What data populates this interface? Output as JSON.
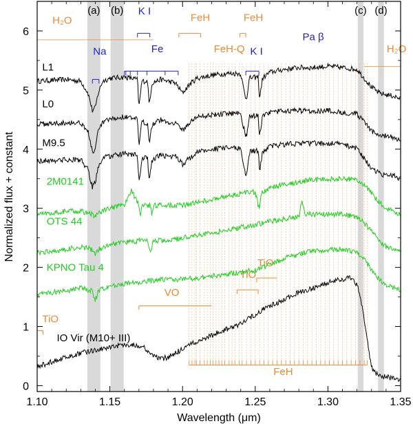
{
  "chart_data": {
    "type": "line",
    "xlabel": "Wavelength (μm)",
    "ylabel": "Normalized flux + constant",
    "xlim": [
      1.1,
      1.35
    ],
    "ylim": [
      -0.1,
      6.5
    ],
    "x_ticks": [
      {
        "value": 1.1,
        "label": "1.10"
      },
      {
        "value": 1.15,
        "label": "1.15"
      },
      {
        "value": 1.2,
        "label": "1.20"
      },
      {
        "value": 1.25,
        "label": "1.25"
      },
      {
        "value": 1.3,
        "label": "1.30"
      },
      {
        "value": 1.35,
        "label": "1.35"
      }
    ],
    "y_ticks": [
      {
        "value": 0,
        "label": "0"
      },
      {
        "value": 1,
        "label": "1"
      },
      {
        "value": 2,
        "label": "2"
      },
      {
        "value": 3,
        "label": "3"
      },
      {
        "value": 4,
        "label": "4"
      },
      {
        "value": 5,
        "label": "5"
      },
      {
        "value": 6,
        "label": "6"
      }
    ],
    "shaded_bands": [
      {
        "label": "(a)",
        "x0": 1.1345,
        "x1": 1.1435
      },
      {
        "label": "(b)",
        "x0": 1.1505,
        "x1": 1.1595
      },
      {
        "label": "(c)",
        "x0": 1.3205,
        "x1": 1.3245
      },
      {
        "label": "(d)",
        "x0": 1.3345,
        "x1": 1.3385
      }
    ],
    "series": [
      {
        "name": "L1",
        "color": "#000000",
        "label_x": 1.1035,
        "label_y": 5.33,
        "x": [
          1.1,
          1.12,
          1.13,
          1.135,
          1.138,
          1.14,
          1.142,
          1.145,
          1.15,
          1.16,
          1.169,
          1.17,
          1.172,
          1.176,
          1.177,
          1.179,
          1.185,
          1.19,
          1.195,
          1.2,
          1.205,
          1.21,
          1.22,
          1.23,
          1.24,
          1.243,
          1.244,
          1.246,
          1.252,
          1.253,
          1.255,
          1.26,
          1.27,
          1.28,
          1.29,
          1.3,
          1.31,
          1.32,
          1.325,
          1.33,
          1.335,
          1.34,
          1.345,
          1.35
        ],
        "y": [
          5.15,
          5.18,
          5.15,
          4.95,
          4.65,
          4.7,
          4.95,
          5.15,
          5.2,
          5.22,
          5.18,
          4.7,
          5.15,
          5.15,
          4.75,
          5.12,
          5.18,
          5.15,
          5.12,
          4.95,
          5.1,
          5.2,
          5.25,
          5.28,
          5.28,
          4.9,
          4.85,
          5.2,
          5.22,
          4.85,
          5.2,
          5.3,
          5.35,
          5.38,
          5.38,
          5.4,
          5.38,
          5.35,
          5.2,
          5.05,
          4.95,
          4.92,
          4.9,
          4.85
        ]
      },
      {
        "name": "L0",
        "color": "#000000",
        "label_x": 1.1035,
        "label_y": 4.71,
        "x": [
          1.1,
          1.12,
          1.13,
          1.135,
          1.138,
          1.14,
          1.142,
          1.145,
          1.15,
          1.16,
          1.169,
          1.17,
          1.172,
          1.176,
          1.177,
          1.179,
          1.185,
          1.19,
          1.195,
          1.2,
          1.205,
          1.21,
          1.22,
          1.23,
          1.24,
          1.243,
          1.244,
          1.246,
          1.252,
          1.253,
          1.255,
          1.26,
          1.27,
          1.28,
          1.29,
          1.3,
          1.31,
          1.32,
          1.325,
          1.33,
          1.335,
          1.34,
          1.345,
          1.35
        ],
        "y": [
          4.42,
          4.45,
          4.45,
          4.3,
          3.95,
          4.0,
          4.3,
          4.45,
          4.5,
          4.55,
          4.5,
          4.05,
          4.45,
          4.45,
          4.1,
          4.42,
          4.5,
          4.45,
          4.45,
          4.32,
          4.45,
          4.55,
          4.58,
          4.6,
          4.62,
          4.25,
          4.2,
          4.55,
          4.58,
          4.2,
          4.55,
          4.62,
          4.65,
          4.65,
          4.65,
          4.65,
          4.62,
          4.6,
          4.45,
          4.3,
          4.25,
          4.22,
          4.2,
          4.15
        ]
      },
      {
        "name": "M9.5",
        "color": "#000000",
        "label_x": 1.1035,
        "label_y": 4.05,
        "x": [
          1.1,
          1.12,
          1.13,
          1.135,
          1.138,
          1.14,
          1.142,
          1.145,
          1.15,
          1.16,
          1.169,
          1.17,
          1.172,
          1.176,
          1.177,
          1.179,
          1.185,
          1.19,
          1.195,
          1.2,
          1.205,
          1.21,
          1.22,
          1.23,
          1.24,
          1.243,
          1.244,
          1.246,
          1.252,
          1.253,
          1.255,
          1.26,
          1.27,
          1.28,
          1.29,
          1.3,
          1.31,
          1.32,
          1.325,
          1.33,
          1.335,
          1.34,
          1.345,
          1.35
        ],
        "y": [
          3.8,
          3.82,
          3.82,
          3.65,
          3.35,
          3.45,
          3.7,
          3.85,
          3.88,
          3.92,
          3.9,
          3.4,
          3.85,
          3.85,
          3.45,
          3.82,
          3.9,
          3.88,
          3.88,
          3.75,
          3.85,
          3.95,
          4.0,
          4.02,
          4.02,
          3.6,
          3.55,
          3.95,
          3.98,
          3.6,
          3.95,
          4.05,
          4.08,
          4.1,
          4.1,
          4.1,
          4.08,
          4.02,
          3.85,
          3.65,
          3.6,
          3.55,
          3.55,
          3.5
        ]
      },
      {
        "name": "2M0141",
        "color": "#22cc22",
        "label_x": 1.1065,
        "label_y": 3.4,
        "x": [
          1.1,
          1.12,
          1.13,
          1.138,
          1.14,
          1.142,
          1.15,
          1.16,
          1.165,
          1.17,
          1.171,
          1.172,
          1.178,
          1.179,
          1.18,
          1.19,
          1.2,
          1.21,
          1.22,
          1.23,
          1.24,
          1.25,
          1.252,
          1.253,
          1.254,
          1.26,
          1.27,
          1.28,
          1.29,
          1.3,
          1.31,
          1.32,
          1.325,
          1.33,
          1.335,
          1.34,
          1.345,
          1.35
        ],
        "y": [
          2.9,
          2.95,
          2.95,
          2.9,
          2.85,
          2.92,
          3.0,
          3.05,
          3.3,
          3.05,
          2.85,
          3.05,
          3.05,
          2.85,
          3.05,
          3.05,
          3.05,
          3.1,
          3.15,
          3.2,
          3.25,
          3.28,
          3.05,
          2.95,
          3.25,
          3.35,
          3.4,
          3.45,
          3.48,
          3.5,
          3.5,
          3.48,
          3.4,
          3.25,
          3.1,
          3.0,
          2.95,
          2.9
        ]
      },
      {
        "name": "OTS 44",
        "color": "#22cc22",
        "label_x": 1.1065,
        "label_y": 2.72,
        "x": [
          1.1,
          1.12,
          1.13,
          1.138,
          1.14,
          1.142,
          1.15,
          1.16,
          1.17,
          1.176,
          1.178,
          1.18,
          1.19,
          1.2,
          1.21,
          1.22,
          1.23,
          1.24,
          1.25,
          1.26,
          1.27,
          1.28,
          1.282,
          1.284,
          1.29,
          1.3,
          1.31,
          1.32,
          1.325,
          1.33,
          1.335,
          1.34,
          1.345,
          1.35
        ],
        "y": [
          2.25,
          2.3,
          2.35,
          2.3,
          2.2,
          2.3,
          2.4,
          2.42,
          2.45,
          2.45,
          2.25,
          2.45,
          2.45,
          2.5,
          2.55,
          2.58,
          2.62,
          2.68,
          2.72,
          2.78,
          2.82,
          2.85,
          3.15,
          2.9,
          2.9,
          2.9,
          2.9,
          2.85,
          2.75,
          2.6,
          2.45,
          2.35,
          2.3,
          2.25
        ]
      },
      {
        "name": "KPNO Tau 4",
        "color": "#22cc22",
        "label_x": 1.1065,
        "label_y": 1.94,
        "x": [
          1.1,
          1.12,
          1.13,
          1.138,
          1.14,
          1.142,
          1.15,
          1.16,
          1.17,
          1.18,
          1.19,
          1.2,
          1.21,
          1.22,
          1.23,
          1.24,
          1.25,
          1.26,
          1.27,
          1.28,
          1.29,
          1.3,
          1.31,
          1.32,
          1.325,
          1.33,
          1.335,
          1.34,
          1.345,
          1.35
        ],
        "y": [
          1.55,
          1.6,
          1.65,
          1.6,
          1.45,
          1.6,
          1.68,
          1.72,
          1.75,
          1.78,
          1.8,
          1.8,
          1.82,
          1.85,
          1.88,
          1.92,
          1.95,
          2.05,
          2.15,
          2.22,
          2.28,
          2.3,
          2.3,
          2.25,
          2.15,
          1.95,
          1.8,
          1.7,
          1.65,
          1.62
        ]
      },
      {
        "name": "IO Vir (M10+ III)",
        "color": "#000000",
        "label_x": 1.1135,
        "label_y": 0.75,
        "x": [
          1.1,
          1.11,
          1.12,
          1.13,
          1.14,
          1.15,
          1.16,
          1.17,
          1.175,
          1.18,
          1.185,
          1.19,
          1.195,
          1.2,
          1.21,
          1.22,
          1.23,
          1.24,
          1.25,
          1.26,
          1.27,
          1.28,
          1.29,
          1.3,
          1.31,
          1.315,
          1.32,
          1.322,
          1.325,
          1.328,
          1.33,
          1.332,
          1.335,
          1.34,
          1.345,
          1.35
        ],
        "y": [
          0.32,
          0.4,
          0.48,
          0.55,
          0.6,
          0.65,
          0.7,
          0.68,
          0.62,
          0.5,
          0.45,
          0.48,
          0.55,
          0.62,
          0.75,
          0.85,
          0.95,
          1.05,
          1.2,
          1.35,
          1.45,
          1.58,
          1.65,
          1.75,
          1.8,
          1.82,
          1.7,
          1.55,
          1.1,
          0.6,
          0.32,
          0.22,
          0.18,
          0.15,
          0.12,
          0.1
        ]
      }
    ],
    "features": [
      {
        "label": "H₂O",
        "color": "#ee8833",
        "label_x": 1.1105,
        "label_y": 6.12,
        "bar_y": 5.85,
        "bar_x0": 1.1,
        "bar_x1": 1.18,
        "ticks": [],
        "style": "line"
      },
      {
        "label": "Na",
        "color": "#2222cc",
        "label_x": 1.1385,
        "label_y": 5.6,
        "bar_y": 5.18,
        "bar_x0": 1.138,
        "bar_x1": 1.1425,
        "ticks": [
          1.138,
          1.1425
        ],
        "style": "bracket"
      },
      {
        "label": "K I",
        "color": "#2222cc",
        "label_x": 1.1695,
        "label_y": 6.28,
        "bar_y": 5.96,
        "bar_x0": 1.169,
        "bar_x1": 1.1775,
        "ticks": [
          1.169,
          1.1775
        ],
        "style": "bracket"
      },
      {
        "label": "Fe",
        "color": "#2222cc",
        "label_x": 1.1785,
        "label_y": 5.64,
        "bar_y": 5.32,
        "bar_x0": 1.16,
        "bar_x1": 1.197,
        "ticks": [
          1.16,
          1.161,
          1.164,
          1.169,
          1.1755,
          1.188,
          1.197
        ],
        "style": "bracket"
      },
      {
        "label": "FeH",
        "color": "#ee8833",
        "label_x": 1.2055,
        "label_y": 6.17,
        "bar_y": 5.96,
        "bar_x0": 1.1975,
        "bar_x1": 1.2125,
        "ticks": [
          1.1975,
          1.2125
        ],
        "style": "bracket-line"
      },
      {
        "label": "FeH",
        "color": "#ee8833",
        "label_x": 1.242,
        "label_y": 6.17,
        "bar_y": 5.96,
        "bar_x0": 1.2395,
        "bar_x1": 1.2435,
        "ticks": [
          1.2395,
          1.2435
        ],
        "style": "bracket"
      },
      {
        "label": "FeH-Q",
        "color": "#ee8833",
        "label_x": 1.2215,
        "label_y": 5.64,
        "bar_y": 5.4,
        "bar_x0": 1.2,
        "bar_x1": 1.24,
        "ticks": [],
        "style": "none"
      },
      {
        "label": "K I",
        "color": "#2222cc",
        "label_x": 1.2465,
        "label_y": 5.6,
        "bar_y": 5.32,
        "bar_x0": 1.2435,
        "bar_x1": 1.2525,
        "ticks": [
          1.2435,
          1.2525
        ],
        "style": "bracket"
      },
      {
        "label": "Pa β",
        "color": "#2222cc",
        "label_x": 1.2825,
        "label_y": 5.84,
        "bar_y": 5.62,
        "bar_x0": 1.2818,
        "bar_x1": 1.2822,
        "ticks": [],
        "style": "none"
      },
      {
        "label": "H₂O",
        "color": "#ee8833",
        "label_x": 1.3405,
        "label_y": 5.64,
        "bar_y": 5.4,
        "bar_x0": 1.325,
        "bar_x1": 1.35,
        "ticks": [],
        "style": "line"
      },
      {
        "label": "TiO",
        "color": "#ee8833",
        "label_x": 1.1035,
        "label_y": 1.07,
        "bar_y": 0.93,
        "bar_x0": 1.1,
        "bar_x1": 1.104,
        "ticks": [
          1.104
        ],
        "style": "bracket-line"
      },
      {
        "label": "VO",
        "color": "#ee8833",
        "label_x": 1.1875,
        "label_y": 1.52,
        "bar_y": 1.35,
        "bar_x0": 1.17,
        "bar_x1": 1.22,
        "ticks": [
          1.17
        ],
        "style": "bracket-line"
      },
      {
        "label": "TiO",
        "color": "#ee8833",
        "label_x": 1.2395,
        "label_y": 1.82,
        "bar_y": 1.62,
        "bar_x0": 1.2375,
        "bar_x1": 1.252,
        "ticks": [
          1.2375,
          1.252
        ],
        "style": "bracket-line"
      },
      {
        "label": "TiO",
        "color": "#ee8833",
        "label_x": 1.2515,
        "label_y": 2.02,
        "bar_y": 1.82,
        "bar_x0": 1.251,
        "bar_x1": 1.265,
        "ticks": [
          1.251
        ],
        "style": "bracket-line"
      },
      {
        "label": "FeH",
        "color": "#ee8833",
        "label_x": 1.2625,
        "label_y": 0.18,
        "bar_y": 0.35,
        "bar_x0": 1.2045,
        "bar_x1": 1.327,
        "ticks": [
          1.2045,
          1.2065,
          1.2085,
          1.2095,
          1.212,
          1.215,
          1.217,
          1.219,
          1.221,
          1.223,
          1.225,
          1.227,
          1.229,
          1.232,
          1.234,
          1.236,
          1.239,
          1.241,
          1.244,
          1.247,
          1.25,
          1.253,
          1.256,
          1.259,
          1.262,
          1.265,
          1.268,
          1.271,
          1.274,
          1.277,
          1.28,
          1.283,
          1.286,
          1.289,
          1.292,
          1.295,
          1.298,
          1.301,
          1.304,
          1.307,
          1.31,
          1.313,
          1.316,
          1.319,
          1.322,
          1.325,
          1.327
        ],
        "style": "comb"
      }
    ]
  }
}
